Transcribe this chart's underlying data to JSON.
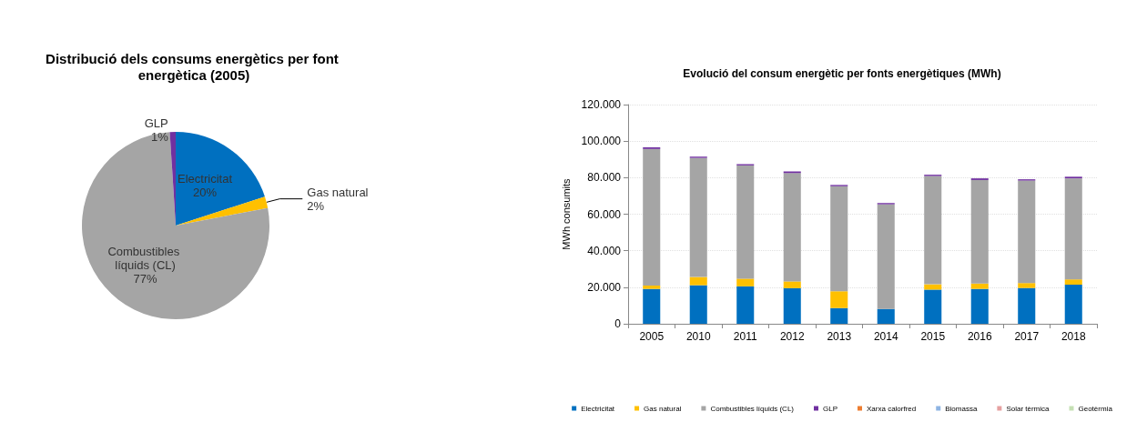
{
  "chart_data": [
    {
      "type": "pie",
      "title": "Distribució dels consums energètics per font energètica (2005)",
      "categories": [
        "Electricitat",
        "Gas natural",
        "Combustibles líquids (CL)",
        "GLP"
      ],
      "values": [
        20,
        2,
        77,
        1
      ],
      "colors": [
        "#0070c0",
        "#ffc000",
        "#a5a5a5",
        "#7030a0"
      ],
      "value_labels": [
        "20%",
        "2%",
        "77%",
        "1%"
      ],
      "legend": false
    },
    {
      "type": "bar",
      "title": "Evolució del consum energètic per fonts energètiques (MWh)",
      "ylabel": "MWh consumits",
      "stacked": true,
      "categories": [
        "2005",
        "2010",
        "2011",
        "2012",
        "2013",
        "2014",
        "2015",
        "2016",
        "2017",
        "2018"
      ],
      "series": [
        {
          "name": "Electricitat",
          "color": "#0070c0",
          "values": [
            19100,
            21100,
            20500,
            19500,
            8600,
            8100,
            18700,
            19100,
            19600,
            21400
          ]
        },
        {
          "name": "Gas natural",
          "color": "#ffc000",
          "values": [
            1800,
            4500,
            4200,
            3700,
            9200,
            0,
            2900,
            2900,
            2700,
            2900
          ]
        },
        {
          "name": "Combustibles líquids (CL)",
          "color": "#a5a5a5",
          "values": [
            74800,
            65200,
            62000,
            59300,
            57500,
            57300,
            59300,
            56700,
            56100,
            55300
          ]
        },
        {
          "name": "GLP",
          "color": "#7030a0",
          "values": [
            900,
            700,
            700,
            900,
            700,
            700,
            700,
            900,
            700,
            900
          ]
        },
        {
          "name": "Xarxa calorfred",
          "color": "#ed7d31",
          "values": [
            0,
            0,
            0,
            0,
            0,
            0,
            0,
            0,
            0,
            0
          ]
        },
        {
          "name": "Biomassa",
          "color": "#8eb4e3",
          "values": [
            0,
            0,
            0,
            0,
            0,
            0,
            0,
            0,
            0,
            0
          ]
        },
        {
          "name": "Solar tèrmica",
          "color": "#e6a0a0",
          "values": [
            0,
            0,
            0,
            0,
            0,
            0,
            0,
            0,
            0,
            0
          ]
        },
        {
          "name": "Geotèrmia",
          "color": "#c5e0b4",
          "values": [
            0,
            0,
            0,
            0,
            0,
            0,
            0,
            0,
            0,
            0
          ]
        }
      ],
      "ylim": [
        0,
        120000
      ],
      "yticks": [
        0,
        {
          "value": 20000,
          "label": "20.000"
        },
        {
          "value": 40000,
          "label": "40.000"
        },
        {
          "value": 60000,
          "label": "60.000"
        },
        {
          "value": 80000,
          "label": "80.000"
        },
        {
          "value": 100000,
          "label": "100.000"
        },
        {
          "value": 120000,
          "label": "120.000"
        }
      ],
      "grid": "y",
      "legend": "bottom"
    }
  ]
}
